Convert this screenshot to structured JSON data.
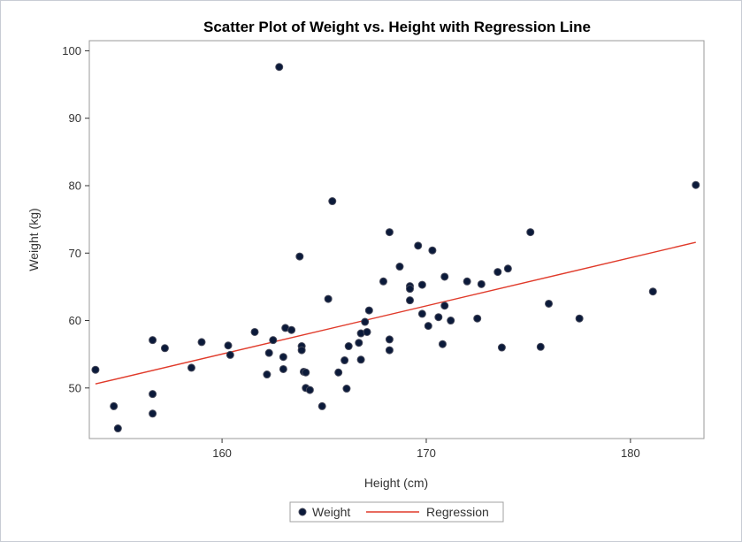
{
  "chart_data": {
    "type": "scatter",
    "title": "Scatter Plot of Weight vs. Height with Regression Line",
    "xlabel": "Height (cm)",
    "ylabel": "Weight (kg)",
    "xlim": [
      153.5,
      183.6
    ],
    "ylim": [
      42.5,
      101.5
    ],
    "xticks": [
      160,
      170,
      180
    ],
    "yticks": [
      50,
      60,
      70,
      80,
      90,
      100
    ],
    "grid": false,
    "legend_position": "bottom-center",
    "series": [
      {
        "name": "Weight",
        "kind": "scatter",
        "color": "#0b1a3a",
        "points": [
          [
            153.8,
            52.7
          ],
          [
            154.7,
            47.3
          ],
          [
            154.9,
            44.0
          ],
          [
            156.6,
            57.1
          ],
          [
            156.6,
            49.1
          ],
          [
            156.6,
            46.2
          ],
          [
            157.2,
            55.9
          ],
          [
            158.5,
            53.0
          ],
          [
            159.0,
            56.8
          ],
          [
            160.3,
            56.3
          ],
          [
            160.4,
            54.9
          ],
          [
            161.6,
            58.3
          ],
          [
            162.2,
            52.0
          ],
          [
            162.3,
            55.2
          ],
          [
            162.5,
            57.1
          ],
          [
            162.8,
            97.6
          ],
          [
            163.0,
            54.6
          ],
          [
            163.0,
            52.8
          ],
          [
            163.1,
            58.9
          ],
          [
            163.4,
            58.6
          ],
          [
            163.8,
            69.5
          ],
          [
            163.9,
            56.2
          ],
          [
            163.9,
            55.6
          ],
          [
            164.0,
            52.4
          ],
          [
            164.1,
            52.3
          ],
          [
            164.1,
            50.0
          ],
          [
            164.3,
            49.7
          ],
          [
            164.9,
            47.3
          ],
          [
            165.2,
            63.2
          ],
          [
            165.4,
            77.7
          ],
          [
            165.7,
            52.3
          ],
          [
            166.0,
            54.1
          ],
          [
            166.1,
            49.9
          ],
          [
            166.2,
            56.2
          ],
          [
            166.7,
            56.7
          ],
          [
            166.8,
            54.2
          ],
          [
            166.8,
            58.1
          ],
          [
            167.0,
            59.8
          ],
          [
            167.1,
            58.3
          ],
          [
            167.2,
            61.5
          ],
          [
            167.9,
            65.8
          ],
          [
            168.2,
            73.1
          ],
          [
            168.2,
            57.2
          ],
          [
            168.2,
            55.6
          ],
          [
            168.7,
            68.0
          ],
          [
            169.2,
            63.0
          ],
          [
            169.2,
            65.1
          ],
          [
            169.2,
            64.7
          ],
          [
            169.6,
            71.1
          ],
          [
            169.8,
            61.0
          ],
          [
            169.8,
            65.3
          ],
          [
            170.1,
            59.2
          ],
          [
            170.3,
            70.4
          ],
          [
            170.6,
            60.5
          ],
          [
            170.8,
            56.5
          ],
          [
            170.9,
            66.5
          ],
          [
            170.9,
            62.2
          ],
          [
            171.2,
            60.0
          ],
          [
            172.0,
            65.8
          ],
          [
            172.5,
            60.3
          ],
          [
            172.7,
            65.4
          ],
          [
            173.5,
            67.2
          ],
          [
            173.7,
            56.0
          ],
          [
            174.0,
            67.7
          ],
          [
            175.1,
            73.1
          ],
          [
            175.6,
            56.1
          ],
          [
            176.0,
            62.5
          ],
          [
            177.5,
            60.3
          ],
          [
            181.1,
            64.3
          ],
          [
            183.2,
            80.1
          ]
        ]
      },
      {
        "name": "Regression",
        "kind": "line",
        "color": "#e03a2a",
        "points": [
          [
            153.8,
            50.6
          ],
          [
            183.2,
            71.6
          ]
        ]
      }
    ]
  },
  "colors": {
    "frame_border": "#c8ccd4",
    "plot_border": "#9a9a9a",
    "marker_fill": "#0b1a3a",
    "marker_edge": "#45485a",
    "regression": "#e03a2a"
  }
}
